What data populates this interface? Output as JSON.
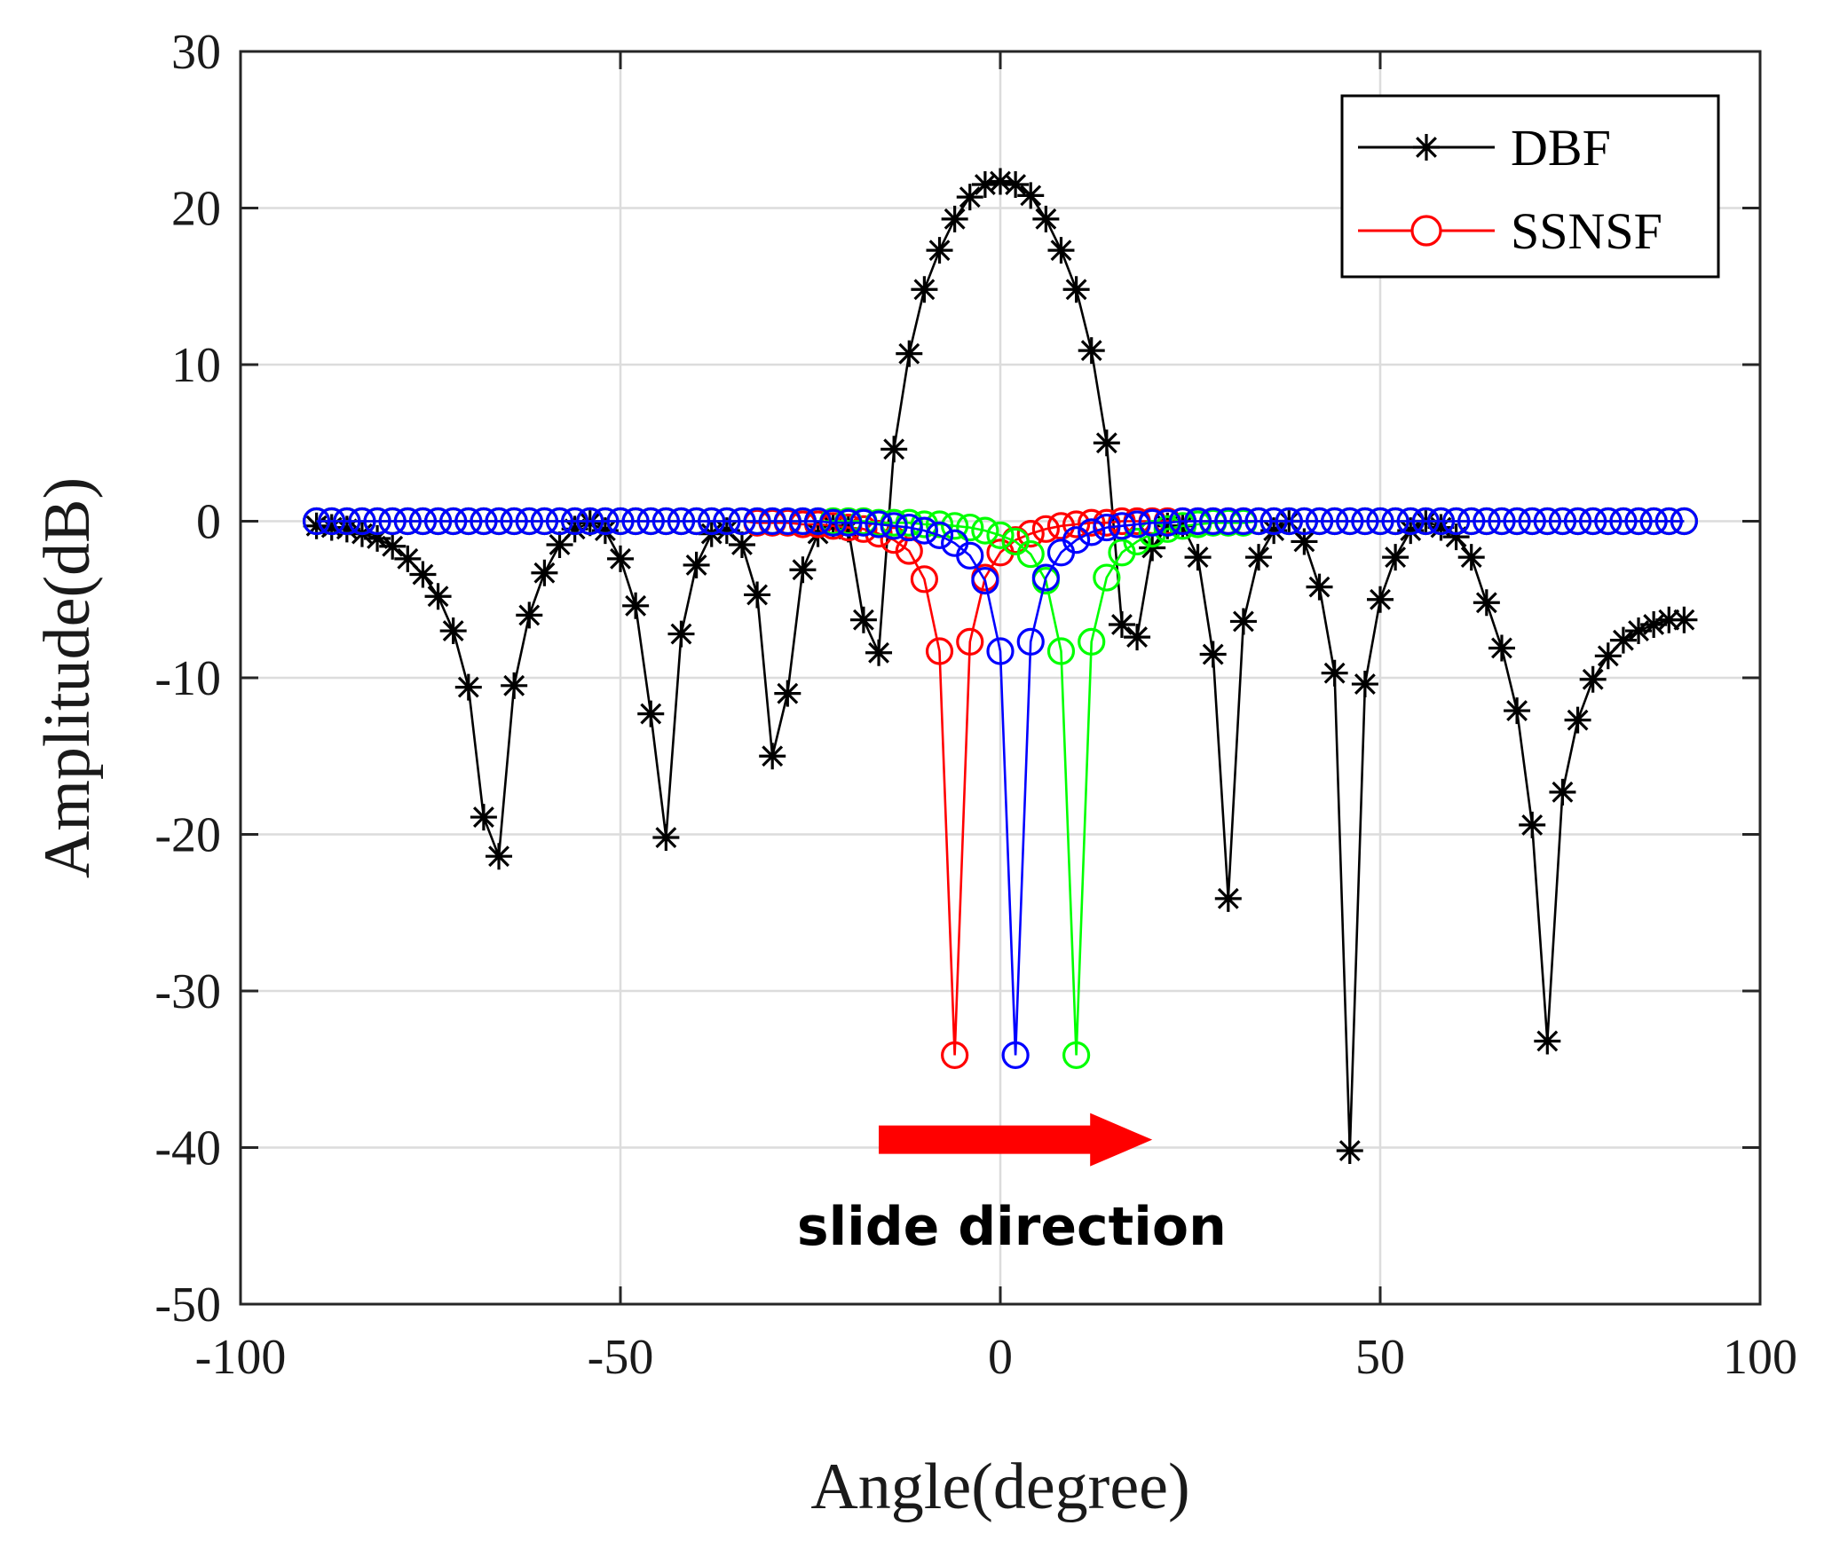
{
  "chart_data": {
    "type": "line",
    "title": "",
    "xlabel": "Angle(degree)",
    "ylabel": "Amplitude(dB)",
    "xlim": [
      -100,
      100
    ],
    "ylim": [
      -50,
      30
    ],
    "xticks": [
      -100,
      -50,
      0,
      50,
      100
    ],
    "xtick_labels": [
      "-100",
      "-50",
      "0",
      "50",
      "100"
    ],
    "yticks": [
      -50,
      -40,
      -30,
      -20,
      -10,
      0,
      10,
      20,
      30
    ],
    "ytick_labels": [
      "-50",
      "-40",
      "-30",
      "-20",
      "-10",
      "0",
      "10",
      "20",
      "30"
    ],
    "grid": true,
    "legend": {
      "placement": "top-right",
      "entries": [
        {
          "label": "DBF",
          "color": "#000000",
          "marker": "asterisk"
        },
        {
          "label": "SSNSF",
          "color": "#ff0000",
          "marker": "circle"
        }
      ]
    },
    "annotation": {
      "text": "slide direction",
      "arrow_from": [
        -16,
        -39.5
      ],
      "arrow_to": [
        20,
        -39.5
      ],
      "arrow_color": "#ff0000"
    },
    "series": [
      {
        "name": "DBF",
        "color": "#000000",
        "marker": "asterisk",
        "x": [
          -90,
          -88,
          -86,
          -84,
          -82,
          -80,
          -78,
          -76,
          -74,
          -72,
          -70,
          -68,
          -66,
          -64,
          -62,
          -60,
          -58,
          -56,
          -54,
          -52,
          -50,
          -48,
          -46,
          -44,
          -42,
          -40,
          -38,
          -36,
          -34,
          -32,
          -30,
          -28,
          -26,
          -24,
          -22,
          -20,
          -18,
          -16,
          -14,
          -12,
          -10,
          -8,
          -6,
          -4,
          -2,
          0,
          2,
          4,
          6,
          8,
          10,
          12,
          14,
          16,
          18,
          20,
          22,
          24,
          26,
          28,
          30,
          32,
          34,
          36,
          38,
          40,
          42,
          44,
          46,
          48,
          50,
          52,
          54,
          56,
          58,
          60,
          62,
          64,
          66,
          68,
          70,
          72,
          74,
          76,
          78,
          80,
          82,
          84,
          86,
          88,
          90
        ],
        "y": [
          -0.3,
          -0.4,
          -0.5,
          -0.8,
          -1.1,
          -1.6,
          -2.4,
          -3.4,
          -4.8,
          -7.0,
          -10.6,
          -18.9,
          -21.4,
          -10.5,
          -6.0,
          -3.3,
          -1.5,
          -0.5,
          -0.1,
          -0.6,
          -2.4,
          -5.4,
          -12.3,
          -20.2,
          -7.2,
          -2.8,
          -0.8,
          -0.6,
          -1.5,
          -4.7,
          -15.0,
          -11.0,
          -3.1,
          -0.8,
          -0.3,
          -0.5,
          -6.3,
          -8.4,
          4.6,
          10.7,
          14.8,
          17.3,
          19.3,
          20.7,
          21.5,
          21.7,
          21.5,
          20.8,
          19.3,
          17.3,
          14.8,
          10.9,
          5.0,
          -6.6,
          -7.4,
          -1.7,
          -0.3,
          -0.3,
          -2.3,
          -8.5,
          -24.1,
          -6.4,
          -2.3,
          -0.6,
          0.0,
          -1.3,
          -4.2,
          -9.7,
          -40.2,
          -10.4,
          -5.0,
          -2.3,
          -0.6,
          0.0,
          -0.4,
          -1.0,
          -2.3,
          -5.2,
          -8.1,
          -12.1,
          -19.4,
          -33.2,
          -17.3,
          -12.7,
          -10.1,
          -8.6,
          -7.6,
          -7.0,
          -6.6,
          -6.3,
          -6.3
        ]
      },
      {
        "name": "SSNSF",
        "color": "#ff0000",
        "marker": "circle",
        "x": [
          -90,
          -88,
          -86,
          -84,
          -82,
          -80,
          -78,
          -76,
          -74,
          -72,
          -70,
          -68,
          -66,
          -64,
          -62,
          -60,
          -58,
          -56,
          -54,
          -52,
          -50,
          -48,
          -46,
          -44,
          -42,
          -40,
          -38,
          -36,
          -34,
          -32,
          -30,
          -28,
          -26,
          -24,
          -22,
          -20,
          -18,
          -16,
          -14,
          -12,
          -10,
          -8,
          -6,
          -4,
          -2,
          0,
          2,
          4,
          6,
          8,
          10,
          12,
          14,
          16,
          18,
          20,
          22,
          24,
          26,
          28,
          30,
          32,
          34,
          36,
          38,
          40,
          42,
          44,
          46,
          48,
          50,
          52,
          54,
          56,
          58,
          60,
          62,
          64,
          66,
          68,
          70,
          72,
          74,
          76,
          78,
          80,
          82,
          84,
          86,
          88,
          90
        ],
        "y": [
          0.0,
          0.0,
          0.0,
          0.0,
          0.0,
          0.0,
          0.0,
          0.0,
          0.0,
          0.0,
          0.0,
          0.0,
          0.0,
          0.0,
          0.0,
          0.0,
          0.0,
          0.0,
          0.0,
          0.0,
          0.0,
          0.0,
          0.0,
          0.0,
          0.0,
          0.0,
          0.0,
          0.0,
          0.0,
          -0.1,
          -0.1,
          -0.1,
          -0.2,
          -0.2,
          -0.3,
          -0.4,
          -0.5,
          -0.8,
          -1.2,
          -1.9,
          -3.7,
          -8.3,
          -34.1,
          -7.7,
          -3.6,
          -2.0,
          -1.2,
          -0.8,
          -0.5,
          -0.3,
          -0.2,
          -0.1,
          -0.1,
          0.0,
          0.0,
          0.0,
          0.0,
          0.0,
          0.0,
          0.0,
          0.0,
          0.0,
          0.0,
          0.0,
          0.0,
          0.0,
          0.0,
          0.0,
          0.0,
          0.0,
          0.0,
          0.0,
          0.0,
          0.0,
          0.0,
          0.0,
          0.0,
          0.0,
          0.0,
          0.0,
          0.0,
          0.0,
          0.0,
          0.0,
          0.0,
          0.0,
          0.0,
          0.0,
          0.0,
          0.0,
          0.0
        ]
      },
      {
        "name": "",
        "color": "#00ff00",
        "marker": "circle",
        "x": [
          -90,
          -88,
          -86,
          -84,
          -82,
          -80,
          -78,
          -76,
          -74,
          -72,
          -70,
          -68,
          -66,
          -64,
          -62,
          -60,
          -58,
          -56,
          -54,
          -52,
          -50,
          -48,
          -46,
          -44,
          -42,
          -40,
          -38,
          -36,
          -34,
          -32,
          -30,
          -28,
          -26,
          -24,
          -22,
          -20,
          -18,
          -16,
          -14,
          -12,
          -10,
          -8,
          -6,
          -4,
          -2,
          0,
          2,
          4,
          6,
          8,
          10,
          12,
          14,
          16,
          18,
          20,
          22,
          24,
          26,
          28,
          30,
          32,
          34,
          36,
          38,
          40,
          42,
          44,
          46,
          48,
          50,
          52,
          54,
          56,
          58,
          60,
          62,
          64,
          66,
          68,
          70,
          72,
          74,
          76,
          78,
          80,
          82,
          84,
          86,
          88,
          90
        ],
        "y": [
          0.0,
          0.0,
          0.0,
          0.0,
          0.0,
          0.0,
          0.0,
          0.0,
          0.0,
          0.0,
          0.0,
          0.0,
          0.0,
          0.0,
          0.0,
          0.0,
          0.0,
          0.0,
          0.0,
          0.0,
          0.0,
          0.0,
          0.0,
          0.0,
          0.0,
          0.0,
          0.0,
          0.0,
          0.0,
          0.0,
          0.0,
          0.0,
          0.0,
          0.0,
          0.0,
          0.0,
          0.0,
          -0.1,
          -0.1,
          -0.1,
          -0.2,
          -0.2,
          -0.3,
          -0.4,
          -0.6,
          -0.9,
          -1.3,
          -2.1,
          -3.8,
          -8.3,
          -34.1,
          -7.7,
          -3.6,
          -2.0,
          -1.3,
          -0.8,
          -0.5,
          -0.3,
          -0.2,
          -0.1,
          -0.1,
          -0.1,
          0.0,
          0.0,
          0.0,
          0.0,
          0.0,
          0.0,
          0.0,
          0.0,
          0.0,
          0.0,
          0.0,
          0.0,
          0.0,
          0.0,
          0.0,
          0.0,
          0.0,
          0.0,
          0.0,
          0.0,
          0.0,
          0.0,
          0.0,
          0.0,
          0.0,
          0.0,
          0.0,
          0.0,
          0.0
        ]
      },
      {
        "name": "",
        "color": "#0000ff",
        "marker": "circle",
        "x": [
          -90,
          -88,
          -86,
          -84,
          -82,
          -80,
          -78,
          -76,
          -74,
          -72,
          -70,
          -68,
          -66,
          -64,
          -62,
          -60,
          -58,
          -56,
          -54,
          -52,
          -50,
          -48,
          -46,
          -44,
          -42,
          -40,
          -38,
          -36,
          -34,
          -32,
          -30,
          -28,
          -26,
          -24,
          -22,
          -20,
          -18,
          -16,
          -14,
          -12,
          -10,
          -8,
          -6,
          -4,
          -2,
          0,
          2,
          4,
          6,
          8,
          10,
          12,
          14,
          16,
          18,
          20,
          22,
          24,
          26,
          28,
          30,
          32,
          34,
          36,
          38,
          40,
          42,
          44,
          46,
          48,
          50,
          52,
          54,
          56,
          58,
          60,
          62,
          64,
          66,
          68,
          70,
          72,
          74,
          76,
          78,
          80,
          82,
          84,
          86,
          88,
          90
        ],
        "y": [
          0.0,
          0.0,
          0.0,
          0.0,
          0.0,
          0.0,
          0.0,
          0.0,
          0.0,
          0.0,
          0.0,
          0.0,
          0.0,
          0.0,
          0.0,
          0.0,
          0.0,
          0.0,
          0.0,
          0.0,
          0.0,
          0.0,
          0.0,
          0.0,
          0.0,
          0.0,
          0.0,
          0.0,
          0.0,
          0.0,
          0.0,
          0.0,
          0.0,
          0.0,
          -0.1,
          -0.1,
          -0.1,
          -0.2,
          -0.3,
          -0.4,
          -0.6,
          -0.9,
          -1.4,
          -2.2,
          -3.8,
          -8.3,
          -34.1,
          -7.7,
          -3.6,
          -2.0,
          -1.2,
          -0.7,
          -0.4,
          -0.3,
          -0.2,
          -0.1,
          -0.1,
          0.0,
          0.0,
          0.0,
          0.0,
          0.0,
          0.0,
          0.0,
          0.0,
          0.0,
          0.0,
          0.0,
          0.0,
          0.0,
          0.0,
          0.0,
          0.0,
          0.0,
          0.0,
          0.0,
          0.0,
          0.0,
          0.0,
          0.0,
          0.0,
          0.0,
          0.0,
          0.0,
          0.0,
          0.0,
          0.0,
          0.0,
          0.0,
          0.0,
          0.0
        ]
      }
    ]
  }
}
